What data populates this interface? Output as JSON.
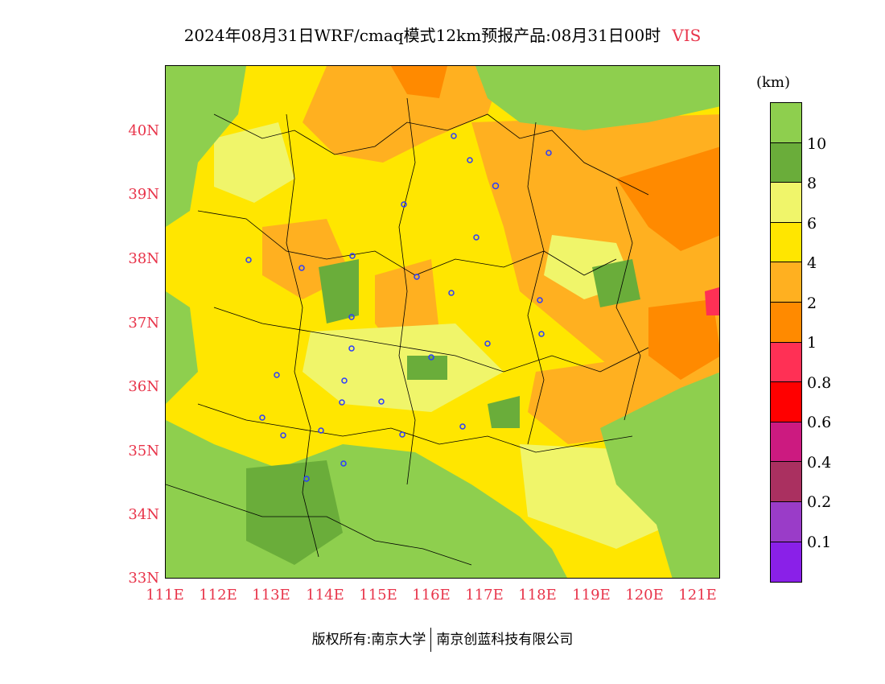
{
  "title": {
    "main": "2024年08月31日WRF/cmaq模式12km预报产品:08月31日00时",
    "variable": "VIS"
  },
  "map": {
    "lat_labels": [
      "40N",
      "39N",
      "38N",
      "37N",
      "36N",
      "35N",
      "34N",
      "33N"
    ],
    "lon_labels": [
      "111E",
      "112E",
      "113E",
      "114E",
      "115E",
      "116E",
      "117E",
      "118E",
      "119E",
      "120E",
      "121E"
    ]
  },
  "legend": {
    "unit": "(km)",
    "labels": [
      "10",
      "8",
      "6",
      "4",
      "2",
      "1",
      "0.8",
      "0.6",
      "0.4",
      "0.2",
      "0.1"
    ],
    "colors": [
      "#8ecf4e",
      "#6aad3a",
      "#f0f56a",
      "#ffe600",
      "#ffb020",
      "#ff8a00",
      "#ff3055",
      "#ff0000",
      "#cc1a80",
      "#aa3060",
      "#9a3cc8",
      "#8a20e8"
    ]
  },
  "footer": {
    "left": "版权所有:南京大学",
    "right": "南京创蓝科技有限公司"
  }
}
